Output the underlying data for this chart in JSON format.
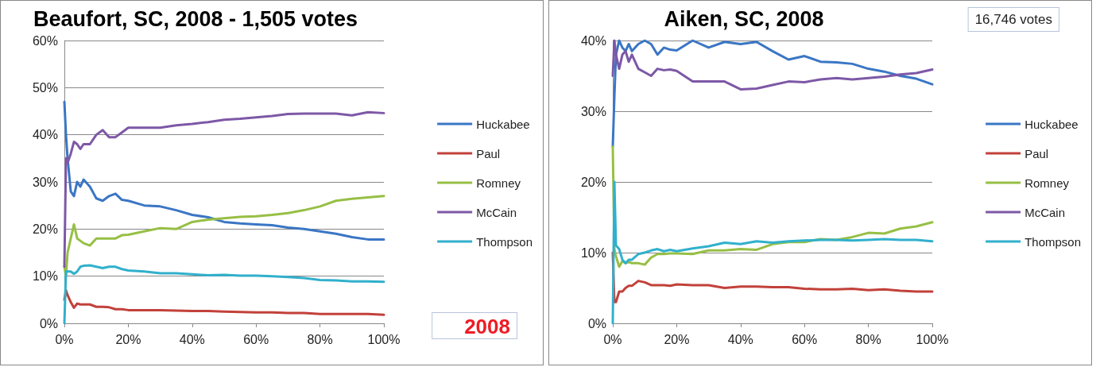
{
  "chart_data": [
    {
      "type": "line",
      "title": "Beaufort, SC, 2008 - 1,505 votes",
      "annotations": [
        "2008"
      ],
      "legend": "right",
      "grid": "y",
      "marker": "none",
      "line_style": "solid",
      "x": [
        0,
        0.5,
        1,
        2,
        3,
        4,
        5,
        6,
        8,
        10,
        12,
        14,
        16,
        18,
        20,
        25,
        30,
        35,
        40,
        45,
        50,
        55,
        60,
        65,
        70,
        75,
        80,
        85,
        90,
        95,
        100
      ],
      "xlim": [
        0,
        100
      ],
      "xticks": [
        {
          "value": 0,
          "label": "0%"
        },
        {
          "value": 20,
          "label": "20%"
        },
        {
          "value": 40,
          "label": "40%"
        },
        {
          "value": 60,
          "label": "60%"
        },
        {
          "value": 80,
          "label": "80%"
        },
        {
          "value": 100,
          "label": "100%"
        }
      ],
      "ylim": [
        0,
        60
      ],
      "yticks": [
        {
          "value": 0,
          "label": "0%"
        },
        {
          "value": 10,
          "label": "10%"
        },
        {
          "value": 20,
          "label": "20%"
        },
        {
          "value": 30,
          "label": "30%"
        },
        {
          "value": 40,
          "label": "40%"
        },
        {
          "value": 50,
          "label": "50%"
        },
        {
          "value": 60,
          "label": "60%"
        }
      ],
      "series": [
        {
          "name": "Huckabee",
          "color": "#3a76c4",
          "values": [
            47,
            40,
            35,
            28,
            27,
            30,
            29,
            30.5,
            29,
            26.5,
            26,
            27,
            27.5,
            26.2,
            26,
            25,
            24.8,
            24,
            23,
            22.5,
            21.5,
            21.2,
            21,
            20.8,
            20.3,
            20,
            19.5,
            19,
            18.3,
            17.8,
            17.8
          ]
        },
        {
          "name": "Paul",
          "color": "#c2413a",
          "values": [
            5,
            7,
            6,
            4.5,
            3.3,
            4.2,
            4,
            4,
            4,
            3.5,
            3.5,
            3.4,
            3,
            3,
            2.8,
            2.8,
            2.8,
            2.7,
            2.6,
            2.6,
            2.5,
            2.4,
            2.3,
            2.3,
            2.2,
            2.2,
            2,
            2,
            2,
            2,
            1.8
          ]
        },
        {
          "name": "Romney",
          "color": "#97bf45",
          "values": [
            12,
            10,
            15,
            18,
            21,
            18,
            17.5,
            17,
            16.5,
            18,
            18,
            18,
            18,
            18.7,
            18.8,
            19.5,
            20.2,
            20,
            21.5,
            22,
            22.3,
            22.6,
            22.7,
            23,
            23.4,
            24,
            24.8,
            26,
            26.4,
            26.7,
            27
          ]
        },
        {
          "name": "McCain",
          "color": "#7d58a6",
          "values": [
            12,
            35,
            34,
            36,
            38.5,
            38,
            37,
            38,
            38,
            40,
            41,
            39.5,
            39.5,
            40.5,
            41.5,
            41.5,
            41.5,
            42,
            42.3,
            42.7,
            43.2,
            43.4,
            43.7,
            44,
            44.4,
            44.5,
            44.5,
            44.5,
            44.1,
            44.8,
            44.6
          ]
        },
        {
          "name": "Thompson",
          "color": "#31b0cc",
          "values": [
            0,
            11,
            11,
            11,
            10.5,
            11,
            12,
            12.2,
            12.3,
            12,
            11.7,
            12,
            12,
            11.5,
            11.2,
            11,
            10.6,
            10.6,
            10.4,
            10.2,
            10.3,
            10.1,
            10.1,
            10,
            9.8,
            9.6,
            9.2,
            9.1,
            8.9,
            8.9,
            8.8
          ]
        }
      ]
    },
    {
      "type": "line",
      "title": "Aiken, SC, 2008",
      "annotations": [
        "16,746 votes"
      ],
      "legend": "right",
      "grid": "y",
      "marker": "none",
      "line_style": "solid",
      "x": [
        0,
        0.5,
        1,
        2,
        3,
        4,
        5,
        6,
        8,
        10,
        12,
        14,
        16,
        18,
        20,
        25,
        30,
        35,
        40,
        45,
        50,
        55,
        60,
        65,
        70,
        75,
        80,
        85,
        90,
        95,
        100
      ],
      "xlim": [
        0,
        100
      ],
      "xticks": [
        {
          "value": 0,
          "label": "0%"
        },
        {
          "value": 20,
          "label": "20%"
        },
        {
          "value": 40,
          "label": "40%"
        },
        {
          "value": 60,
          "label": "60%"
        },
        {
          "value": 80,
          "label": "80%"
        },
        {
          "value": 100,
          "label": "100%"
        }
      ],
      "ylim": [
        0,
        40
      ],
      "yticks": [
        {
          "value": 0,
          "label": "0%"
        },
        {
          "value": 10,
          "label": "10%"
        },
        {
          "value": 20,
          "label": "20%"
        },
        {
          "value": 30,
          "label": "30%"
        },
        {
          "value": 40,
          "label": "40%"
        }
      ],
      "series": [
        {
          "name": "Huckabee",
          "color": "#3a76c4",
          "values": [
            25,
            32,
            38,
            40,
            39,
            38.5,
            39.5,
            38.5,
            39.5,
            40,
            39.5,
            38,
            39,
            38.7,
            38.6,
            40,
            39,
            39.8,
            39.5,
            39.8,
            38.5,
            37.3,
            37.8,
            37,
            36.9,
            36.7,
            36,
            35.6,
            35,
            34.6,
            33.8
          ]
        },
        {
          "name": "Paul",
          "color": "#c2413a",
          "values": [
            10,
            3,
            3,
            4.5,
            4.5,
            5,
            5.3,
            5.3,
            6,
            5.8,
            5.4,
            5.4,
            5.4,
            5.3,
            5.5,
            5.4,
            5.4,
            5,
            5.2,
            5.2,
            5.1,
            5.1,
            4.9,
            4.8,
            4.8,
            4.9,
            4.7,
            4.8,
            4.6,
            4.5,
            4.5
          ]
        },
        {
          "name": "Romney",
          "color": "#97bf45",
          "values": [
            25,
            10.5,
            9.5,
            8,
            8.8,
            8.5,
            8.7,
            8.5,
            8.5,
            8.3,
            9.3,
            9.8,
            9.8,
            9.9,
            9.9,
            9.8,
            10.3,
            10.3,
            10.5,
            10.4,
            11.2,
            11.5,
            11.5,
            11.9,
            11.8,
            12.2,
            12.8,
            12.7,
            13.4,
            13.7,
            14.3
          ]
        },
        {
          "name": "McCain",
          "color": "#7d58a6",
          "values": [
            35,
            40,
            38,
            36,
            38,
            38.5,
            37,
            38,
            36,
            35.5,
            35,
            36,
            35.8,
            35.9,
            35.7,
            34.2,
            34.2,
            34.2,
            33.1,
            33.2,
            33.7,
            34.2,
            34.1,
            34.5,
            34.7,
            34.5,
            34.7,
            34.9,
            35.2,
            35.4,
            35.9
          ]
        },
        {
          "name": "Thompson",
          "color": "#31b0cc",
          "values": [
            0,
            20,
            11,
            10.5,
            9,
            8.5,
            9,
            9,
            9.8,
            10,
            10.3,
            10.5,
            10.2,
            10.4,
            10.2,
            10.6,
            10.9,
            11.4,
            11.2,
            11.6,
            11.4,
            11.6,
            11.7,
            11.8,
            11.8,
            11.7,
            11.8,
            11.9,
            11.8,
            11.8,
            11.6
          ]
        }
      ]
    }
  ]
}
